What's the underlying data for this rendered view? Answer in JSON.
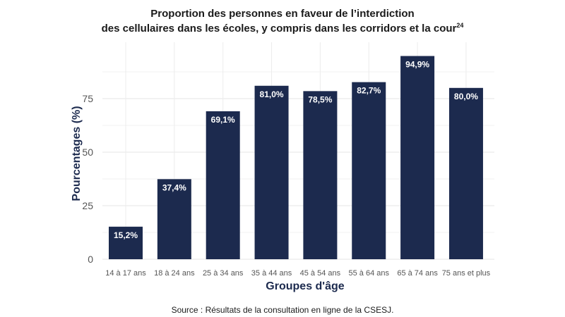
{
  "chart_data": {
    "type": "bar",
    "title_line1": "Proportion des personnes en faveur de l’interdiction",
    "title_line2": "des cellulaires dans les écoles, y compris dans les corridors et la cour",
    "title_footnote": "24",
    "categories": [
      "14 à 17 ans",
      "18 à 24 ans",
      "25 à 34 ans",
      "35 à 44 ans",
      "45 à 54 ans",
      "55 à 64 ans",
      "65 à 74 ans",
      "75 ans et plus"
    ],
    "values": [
      15.2,
      37.4,
      69.1,
      81.0,
      78.5,
      82.7,
      94.9,
      80.0
    ],
    "value_labels": [
      "15,2%",
      "37,4%",
      "69,1%",
      "81,0%",
      "78,5%",
      "82,7%",
      "94,9%",
      "80,0%"
    ],
    "xlabel": "Groupes d'âge",
    "ylabel": "Pourcentages (%)",
    "ylim": [
      0,
      100
    ],
    "yticks": [
      0,
      25,
      50,
      75
    ],
    "grid": true,
    "legend": "none",
    "bar_color": "#1c2a4e"
  },
  "source": "Source : Résultats de la consultation en ligne de la CSESJ."
}
